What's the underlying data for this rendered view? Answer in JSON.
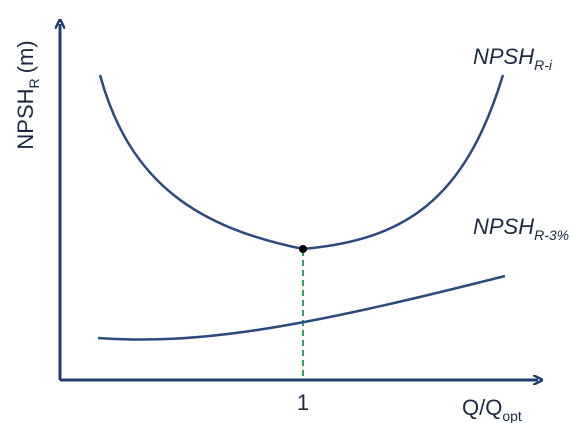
{
  "axes": {
    "y_label": {
      "main": "NPSH",
      "sub": "R",
      "unit": "(m)"
    },
    "x_label": {
      "main": "Q/Q",
      "sub": "opt"
    },
    "x_tick": "1"
  },
  "curves": [
    {
      "main": "NPSH",
      "sub": "R-i"
    },
    {
      "main": "NPSH",
      "sub": "R-3%"
    }
  ]
}
